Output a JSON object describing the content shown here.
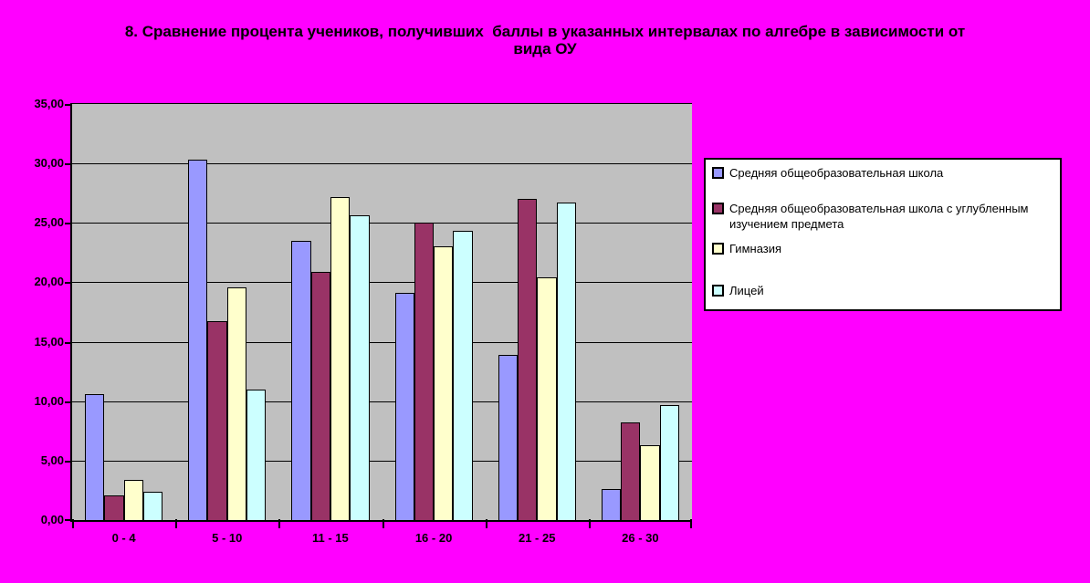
{
  "header": {
    "title_line1": "8. Сравнение процента учеников, получивших  баллы в указанных интервалах по алгебре в зависимости от",
    "title_line2": "вида ОУ"
  },
  "colors": {
    "page_background": "#FF00FF",
    "plot_background": "#C0C0C0",
    "axis_and_grid": "#000000",
    "text": "#000000",
    "legend_background": "#FFFFFF"
  },
  "chart_data": {
    "type": "bar",
    "title": "8. Сравнение процента учеников, получивших  баллы в указанных интервалах по алгебре в зависимости от вида ОУ",
    "categories": [
      "0 - 4",
      "5 - 10",
      "11 - 15",
      "16 - 20",
      "21 - 25",
      "26 - 30"
    ],
    "series": [
      {
        "name": "Средняя общеобразовательная школа",
        "color": "#9999FF",
        "values": [
          10.6,
          30.3,
          23.5,
          19.1,
          13.9,
          2.6
        ]
      },
      {
        "name": "Средняя общеобразовательная школа с углубленным изучением предмета",
        "color": "#993366",
        "values": [
          2.1,
          16.7,
          20.9,
          25.0,
          27.0,
          8.2
        ]
      },
      {
        "name": "Гимназия",
        "color": "#FFFFCC",
        "values": [
          3.4,
          19.6,
          27.2,
          23.0,
          20.4,
          6.3
        ]
      },
      {
        "name": "Лицей",
        "color": "#CCFFFF",
        "values": [
          2.4,
          11.0,
          25.6,
          24.3,
          26.7,
          9.7
        ]
      }
    ],
    "xlabel": "",
    "ylabel": "",
    "ylim": [
      0,
      35
    ],
    "ytick_step": 5,
    "ytick_labels": [
      "0,00",
      "5,00",
      "10,00",
      "15,00",
      "20,00",
      "25,00",
      "30,00",
      "35,00"
    ],
    "decimal_separator": ",",
    "grid": "horizontal",
    "legend_position": "right"
  }
}
